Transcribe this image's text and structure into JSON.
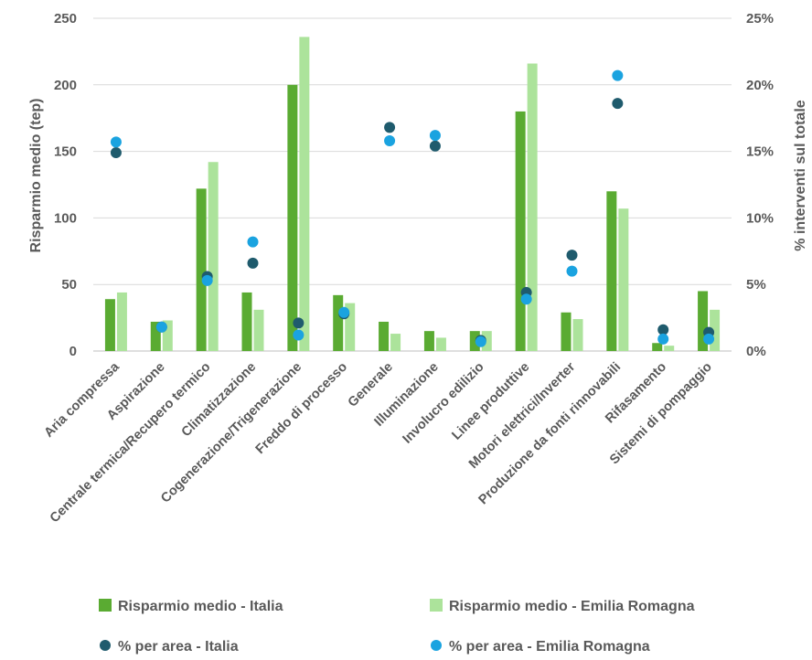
{
  "chart_data": {
    "type": "bar",
    "title": "",
    "ylabel": "Risparmio medio (tep)",
    "y2label": "% interventi sul totale",
    "ylim": [
      0,
      250
    ],
    "y2lim": [
      0,
      25
    ],
    "yticks": [
      "0",
      "50",
      "100",
      "150",
      "200",
      "250"
    ],
    "y2ticks": [
      "0%",
      "5%",
      "10%",
      "15%",
      "20%",
      "25%"
    ],
    "gridlines": true,
    "legend_position": "bottom",
    "categories": [
      "Aria compressa",
      "Aspirazione",
      "Centrale termica/Recupero termico",
      "Climatizzazione",
      "Cogenerazione/Trigenerazione",
      "Freddo di processo",
      "Generale",
      "Illuminazione",
      "Involucro edilizio",
      "Linee produttive",
      "Motori elettrici/Inverter",
      "Produzione da fonti rinnovabili",
      "Rifasamento",
      "Sistemi di pompaggio"
    ],
    "series": [
      {
        "name": "Risparmio medio - Italia",
        "kind": "bar",
        "axis": "left",
        "color": "#5aab32",
        "values": [
          39,
          22,
          122,
          44,
          200,
          42,
          22,
          15,
          15,
          180,
          29,
          120,
          6,
          45
        ]
      },
      {
        "name": "Risparmio medio - Emilia Romagna",
        "kind": "bar",
        "axis": "left",
        "color": "#ace39b",
        "values": [
          44,
          23,
          142,
          31,
          236,
          36,
          13,
          10,
          15,
          216,
          24,
          107,
          4,
          31
        ]
      },
      {
        "name": "% per area - Italia",
        "kind": "point",
        "axis": "right",
        "color": "#1f5b6d",
        "values": [
          14.9,
          1.8,
          5.6,
          6.6,
          2.1,
          2.8,
          16.8,
          15.4,
          0.8,
          4.4,
          7.2,
          18.6,
          1.6,
          1.4
        ]
      },
      {
        "name": "% per area - Emilia Romagna",
        "kind": "point",
        "axis": "right",
        "color": "#1aa3e0",
        "values": [
          15.7,
          1.8,
          5.3,
          8.2,
          1.2,
          2.9,
          15.8,
          16.2,
          0.7,
          3.9,
          6.0,
          20.7,
          0.9,
          0.9
        ]
      }
    ]
  }
}
